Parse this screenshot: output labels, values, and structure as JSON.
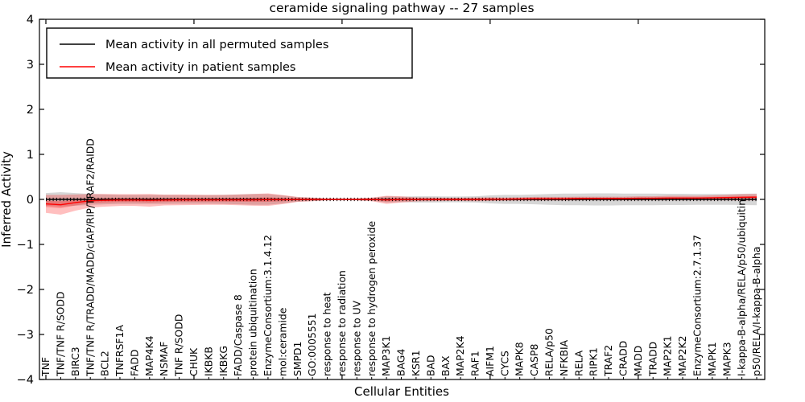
{
  "title": "ceramide signaling pathway -- 27 samples",
  "axes": {
    "xlabel": "Cellular Entities",
    "ylabel": "Inferred Activity"
  },
  "legend": {
    "items": [
      {
        "label": "Mean activity in all permuted samples",
        "color": "#000000"
      },
      {
        "label": "Mean activity in patient samples",
        "color": "#ff0000"
      }
    ]
  },
  "colors": {
    "permuted_line": "#000000",
    "patient_line": "#ff0000",
    "permuted_band": "rgba(0,0,0,0.16)",
    "patient_band": "rgba(255,0,0,0.25)",
    "axis": "#000000"
  },
  "chart_data": {
    "type": "line",
    "title": "ceramide signaling pathway -- 27 samples",
    "xlabel": "Cellular Entities",
    "ylabel": "Inferred Activity",
    "ylim": [
      -4,
      4
    ],
    "yticks": [
      4,
      3,
      2,
      1,
      0,
      -1,
      -2,
      -3,
      -4
    ],
    "xtick_major_every": 10,
    "grid": false,
    "legend_position": "upper left",
    "categories": [
      "TNF",
      "TNF/TNF R/SODD",
      "BIRC3",
      "TNF/TNF R/TRADD/MADD/cIAP/RIP/TRAF2/RAIDD",
      "BCL2",
      "TNFRSF1A",
      "FADD",
      "MAP4K4",
      "NSMAF",
      "TNF R/SODD",
      "CHUK",
      "IKBKB",
      "IKBKG",
      "FADD/Caspase 8",
      "protein ubiquitination",
      "EnzymeConsortium:3.1.4.12",
      "mol:ceramide",
      "SMPD1",
      "GO:0005551",
      "response to heat",
      "response to radiation",
      "response to UV",
      "response to hydrogen peroxide",
      "MAP3K1",
      "BAG4",
      "KSR1",
      "BAD",
      "BAX",
      "MAP2K4",
      "RAF1",
      "AIFM1",
      "CYCS",
      "MAPK8",
      "CASP8",
      "RELA/p50",
      "NFKBIA",
      "RELA",
      "RIPK1",
      "TRAF2",
      "CRADD",
      "MADD",
      "TRADD",
      "MAP2K1",
      "MAP2K2",
      "EnzymeConsortium:2.7.1.37",
      "MAPK1",
      "MAPK3",
      "I-kappa-B-alpha/RELA/p50/ubiquitin",
      "p50/RELA/I-kappa-B-alpha"
    ],
    "series": [
      {
        "name": "Mean activity in all permuted samples",
        "color": "#000000",
        "values": [
          0,
          0,
          0,
          0,
          0,
          0,
          0,
          0,
          0,
          0,
          0,
          0,
          0,
          0,
          0,
          0,
          0,
          0,
          0,
          0,
          0,
          0,
          0,
          0,
          0,
          0,
          0,
          0,
          0,
          0,
          0,
          0,
          0,
          0,
          0,
          0,
          0,
          0,
          0,
          0,
          0,
          0,
          0,
          0,
          0,
          0,
          0,
          0,
          0
        ],
        "band": [
          0.14,
          0.16,
          0.14,
          0.12,
          0.11,
          0.1,
          0.1,
          0.1,
          0.1,
          0.095,
          0.095,
          0.095,
          0.1,
          0.11,
          0.12,
          0.12,
          0.09,
          0.05,
          0.035,
          0.015,
          0.01,
          0.015,
          0.03,
          0.07,
          0.06,
          0.07,
          0.07,
          0.065,
          0.065,
          0.07,
          0.09,
          0.1,
          0.1,
          0.11,
          0.12,
          0.13,
          0.13,
          0.135,
          0.135,
          0.13,
          0.13,
          0.13,
          0.125,
          0.125,
          0.12,
          0.12,
          0.12,
          0.125,
          0.13
        ]
      },
      {
        "name": "Mean activity in patient samples",
        "color": "#ff0000",
        "values": [
          -0.1,
          -0.12,
          -0.07,
          -0.03,
          -0.02,
          -0.015,
          -0.015,
          -0.02,
          -0.015,
          -0.01,
          -0.01,
          -0.01,
          -0.01,
          -0.01,
          -0.01,
          -0.005,
          -0.005,
          0,
          0,
          0,
          0,
          0,
          0,
          -0.01,
          0,
          0,
          0,
          0,
          0,
          0,
          0.005,
          0.005,
          0.01,
          0.015,
          0.015,
          0.015,
          0.02,
          0.02,
          0.02,
          0.02,
          0.025,
          0.025,
          0.03,
          0.03,
          0.03,
          0.035,
          0.04,
          0.045,
          0.05
        ],
        "band": [
          0.2,
          0.22,
          0.18,
          0.15,
          0.14,
          0.13,
          0.13,
          0.14,
          0.12,
          0.12,
          0.115,
          0.11,
          0.11,
          0.12,
          0.13,
          0.14,
          0.1,
          0.055,
          0.04,
          0.02,
          0.015,
          0.02,
          0.04,
          0.09,
          0.07,
          0.045,
          0.04,
          0.035,
          0.035,
          0.04,
          0.04,
          0.035,
          0.035,
          0.04,
          0.04,
          0.04,
          0.04,
          0.04,
          0.04,
          0.04,
          0.045,
          0.045,
          0.05,
          0.05,
          0.05,
          0.055,
          0.06,
          0.07,
          0.07
        ]
      }
    ]
  }
}
